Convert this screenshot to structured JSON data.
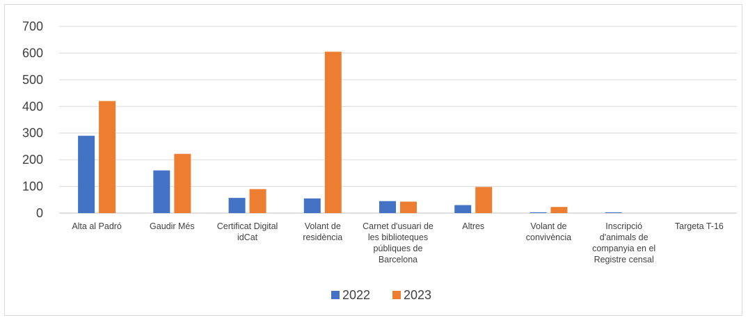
{
  "chart_data": {
    "type": "bar",
    "categories": [
      [
        "Alta al Padró"
      ],
      [
        "Gaudir Més"
      ],
      [
        "Certificat Digital",
        "idCat"
      ],
      [
        "Volant de",
        "residència"
      ],
      [
        "Carnet d'usuari de",
        "les biblioteques",
        "públiques de",
        "Barcelona"
      ],
      [
        "Altres"
      ],
      [
        "Volant de",
        "convivència"
      ],
      [
        "Inscripció",
        "d'animals de",
        "companyia en el",
        "Registre censal"
      ],
      [
        "Targeta T-16"
      ]
    ],
    "series": [
      {
        "name": "2022",
        "color": "#4472c4",
        "values": [
          290,
          160,
          57,
          55,
          45,
          30,
          3,
          3,
          0
        ]
      },
      {
        "name": "2023",
        "color": "#ed7d31",
        "values": [
          420,
          222,
          90,
          605,
          43,
          98,
          23,
          0,
          0
        ]
      }
    ],
    "y_ticks": [
      "0",
      "100",
      "200",
      "300",
      "400",
      "500",
      "600",
      "700"
    ],
    "ylim": [
      0,
      700
    ],
    "grid": true,
    "legend_position": "bottom"
  }
}
